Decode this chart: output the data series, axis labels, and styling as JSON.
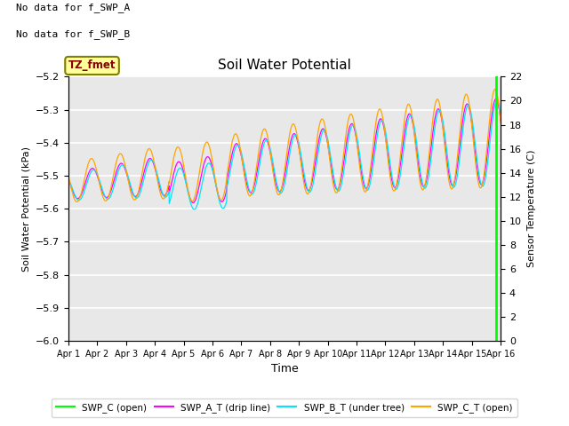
{
  "title": "Soil Water Potential",
  "ylabel_left": "Soil Water Potential (kPa)",
  "ylabel_right": "Sensor Temperature (C)",
  "xlabel": "Time",
  "text_no_data": [
    "No data for f_SWP_A",
    "No data for f_SWP_B"
  ],
  "annotation_box": "TZ_fmet",
  "ylim_left": [
    -6.0,
    -5.2
  ],
  "ylim_right": [
    0,
    22
  ],
  "yticks_left": [
    -6.0,
    -5.9,
    -5.8,
    -5.7,
    -5.6,
    -5.5,
    -5.4,
    -5.3,
    -5.2
  ],
  "yticks_right": [
    0,
    2,
    4,
    6,
    8,
    10,
    12,
    14,
    16,
    18,
    20,
    22
  ],
  "xtick_labels": [
    "Apr 1",
    "Apr 2",
    "Apr 3",
    "Apr 4",
    "Apr 5",
    "Apr 6",
    "Apr 7",
    "Apr 8",
    "Apr 9",
    "Apr 10",
    "Apr 11",
    "Apr 12",
    "Apr 13",
    "Apr 14",
    "Apr 15",
    "Apr 16"
  ],
  "background_color": "#e8e8e8",
  "grid_color": "#ffffff",
  "legend_entries": [
    {
      "label": "SWP_C (open)",
      "color": "#00ff00"
    },
    {
      "label": "SWP_A_T (drip line)",
      "color": "#ff00ff"
    },
    {
      "label": "SWP_B_T (under tree)",
      "color": "#00e5ff"
    },
    {
      "label": "SWP_C_T (open)",
      "color": "#ffa500"
    }
  ],
  "vline_x": 14.85,
  "vline_color": "#00ff00"
}
